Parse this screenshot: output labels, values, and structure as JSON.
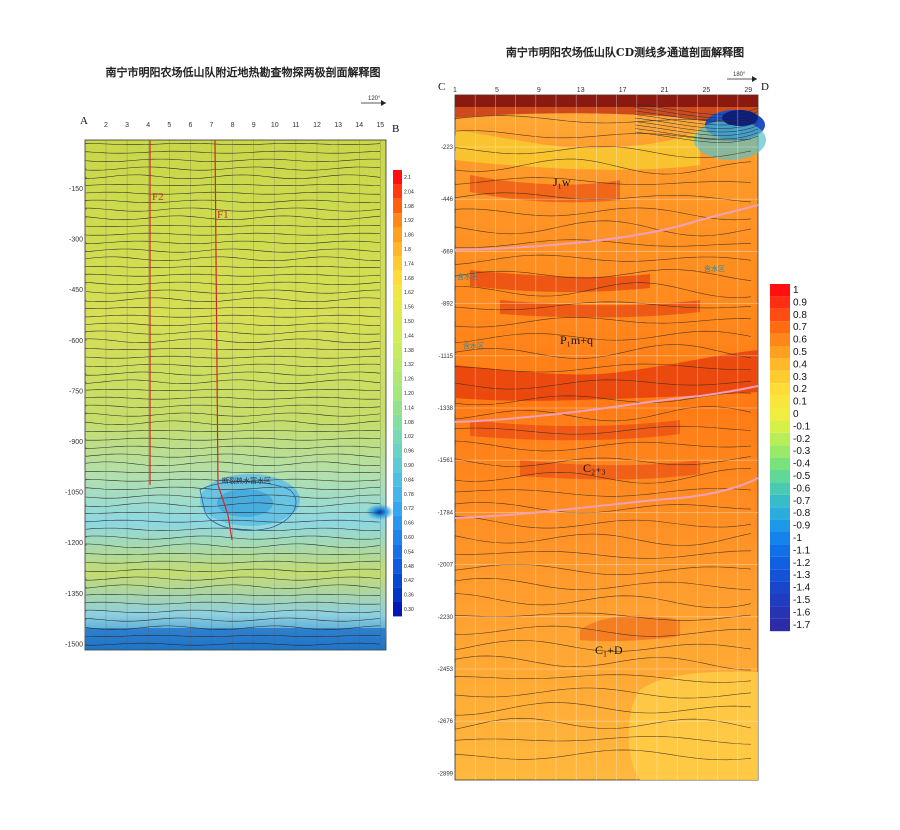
{
  "left": {
    "title": "南宁市明阳农场低山队附近地热勘查物探两极剖面解释图",
    "start_label": "A",
    "end_label": "B",
    "azimuth": "120°",
    "x_ticks": [
      "2",
      "3",
      "4",
      "5",
      "6",
      "7",
      "8",
      "9",
      "10",
      "11",
      "12",
      "13",
      "14",
      "15"
    ],
    "y_ticks": [
      "-150",
      "-300",
      "-450",
      "-600",
      "-750",
      "-900",
      "-1050",
      "-1200",
      "-1350",
      "-1500"
    ],
    "legend": [
      "2.1",
      "2.04",
      "1.98",
      "1.92",
      "1.86",
      "1.8",
      "1.74",
      "1.68",
      "1.62",
      "1.56",
      "1.50",
      "1.44",
      "1.38",
      "1.32",
      "1.26",
      "1.20",
      "1.14",
      "1.08",
      "1.02",
      "0.96",
      "0.90",
      "0.84",
      "0.78",
      "0.72",
      "0.66",
      "0.60",
      "0.54",
      "0.48",
      "0.42",
      "0.36",
      "0.30"
    ],
    "faults": [
      "F2",
      "F1"
    ],
    "zone_label": "断裂热水富水区"
  },
  "right": {
    "title": "南宁市明阳农场低山队CD测线多通道剖面解释图",
    "start_label": "C",
    "end_label": "D",
    "azimuth": "180°",
    "x_ticks": [
      "1",
      "5",
      "9",
      "13",
      "17",
      "21",
      "25",
      "29"
    ],
    "y_ticks": [
      "-223",
      "-446",
      "-669",
      "-892",
      "-1115",
      "-1338",
      "-1561",
      "-1784",
      "-2007",
      "-2230",
      "-2453",
      "-2676",
      "-2899"
    ],
    "legend": [
      "1",
      "0.9",
      "0.8",
      "0.7",
      "0.6",
      "0.5",
      "0.4",
      "0.3",
      "0.2",
      "0.1",
      "0",
      "-0.1",
      "-0.2",
      "-0.3",
      "-0.4",
      "-0.5",
      "-0.6",
      "-0.7",
      "-0.8",
      "-0.9",
      "-1",
      "-1.1",
      "-1.2",
      "-1.3",
      "-1.4",
      "-1.5",
      "-1.6",
      "-1.7"
    ],
    "units": [
      "J₁w",
      "P₁m+q",
      "C₂₊₃",
      "C₁+D"
    ],
    "zones": [
      "含水区",
      "含水区",
      "含水区"
    ]
  },
  "colors": {
    "fault_line": "#d42a1e",
    "boundary_line": "#f0a0b8",
    "contour": "#333333"
  }
}
